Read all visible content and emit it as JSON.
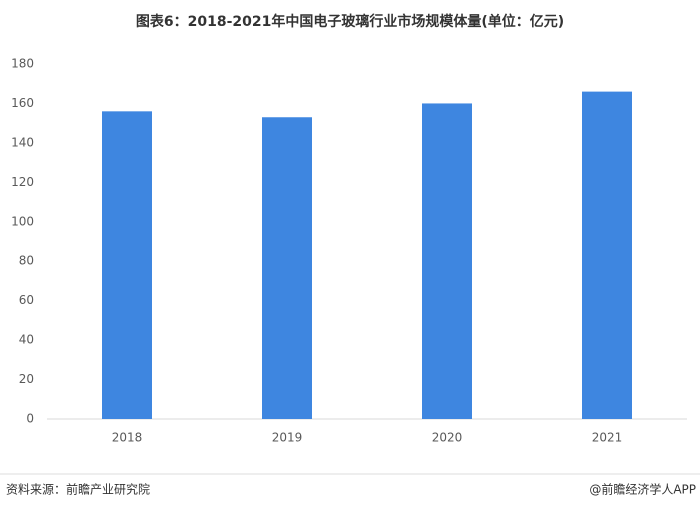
{
  "chart_data": {
    "type": "bar",
    "title": "图表6：2018-2021年中国电子玻璃行业市场规模体量(单位：亿元)",
    "categories": [
      "2018",
      "2019",
      "2020",
      "2021"
    ],
    "values": [
      156,
      153,
      160,
      166
    ],
    "color": "#3e86e0",
    "ylim": [
      0,
      180
    ],
    "yticks": [
      0,
      20,
      40,
      60,
      80,
      100,
      120,
      140,
      160,
      180
    ],
    "grid": false
  },
  "footer": {
    "source": "资料来源：前瞻产业研究院",
    "credit": "@前瞻经济学人APP"
  }
}
